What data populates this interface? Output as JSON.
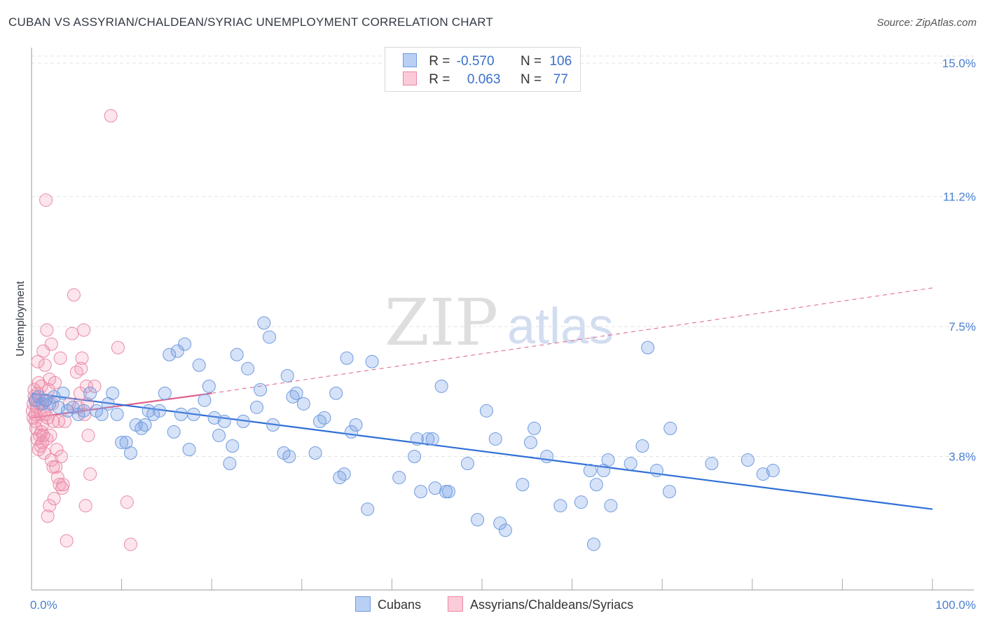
{
  "title": "CUBAN VS ASSYRIAN/CHALDEAN/SYRIAC UNEMPLOYMENT CORRELATION CHART",
  "source": "Source: ZipAtlas.com",
  "watermark": {
    "zip": "ZIP",
    "atlas": "atlas"
  },
  "legend": {
    "rows": [
      {
        "r_label": "R =",
        "r_value": "-0.570",
        "n_label": "N =",
        "n_value": "106",
        "color": "#a8c4f0",
        "border": "#6f9be0"
      },
      {
        "r_label": "R =",
        "r_value": "0.063",
        "n_label": "N =",
        "n_value": "77",
        "color": "#f8b8cb",
        "border": "#e98aa6"
      }
    ]
  },
  "bottom_legend": {
    "cubans": "Cubans",
    "assyrians": "Assyrians/Chaldeans/Syriacs"
  },
  "colors": {
    "blue_fill": "rgba(120,160,230,0.30)",
    "blue_stroke": "#6f9be0",
    "blue_line": "#2f6fd6",
    "pink_fill": "rgba(245,150,180,0.25)",
    "pink_stroke": "#e98aa6",
    "pink_line": "#e0608a",
    "tick_color": "#4a7fd0",
    "grid": "#e3e3e3"
  },
  "chart_data": {
    "type": "scatter",
    "title": "CUBAN VS ASSYRIAN/CHALDEAN/SYRIAC UNEMPLOYMENT CORRELATION CHART",
    "xlabel": "",
    "ylabel": "Unemployment",
    "xlim": [
      0,
      100
    ],
    "ylim": [
      0,
      15.5
    ],
    "x_tick_labels": [
      "0.0%",
      "100.0%"
    ],
    "y_ticks": [
      3.8,
      7.5,
      11.2,
      15.0
    ],
    "y_tick_labels": [
      "3.8%",
      "7.5%",
      "11.2%",
      "15.0%"
    ],
    "grid": true,
    "legend_position": "top-center",
    "series": [
      {
        "name": "Cubans",
        "R": -0.57,
        "N": 106,
        "trend": {
          "x": [
            0,
            100
          ],
          "y": [
            5.6,
            2.3
          ]
        },
        "points": [
          [
            0.4,
            5.4
          ],
          [
            0.8,
            5.5
          ],
          [
            1.2,
            5.3
          ],
          [
            1.6,
            5.4
          ],
          [
            2.0,
            5.3
          ],
          [
            2.5,
            5.5
          ],
          [
            3.0,
            5.2
          ],
          [
            3.5,
            5.6
          ],
          [
            4.0,
            5.1
          ],
          [
            4.6,
            5.2
          ],
          [
            5.2,
            5.0
          ],
          [
            5.8,
            5.1
          ],
          [
            6.5,
            5.6
          ],
          [
            7.2,
            5.1
          ],
          [
            7.8,
            5.0
          ],
          [
            8.5,
            5.3
          ],
          [
            9.0,
            5.6
          ],
          [
            9.5,
            5.0
          ],
          [
            10.0,
            4.2
          ],
          [
            10.5,
            4.2
          ],
          [
            11.0,
            3.9
          ],
          [
            11.6,
            4.7
          ],
          [
            12.2,
            4.6
          ],
          [
            12.6,
            4.7
          ],
          [
            13.0,
            5.1
          ],
          [
            13.5,
            5.0
          ],
          [
            14.2,
            5.1
          ],
          [
            14.8,
            5.6
          ],
          [
            15.3,
            6.7
          ],
          [
            15.8,
            4.5
          ],
          [
            16.2,
            6.8
          ],
          [
            16.6,
            5.0
          ],
          [
            17.0,
            7.0
          ],
          [
            17.5,
            4.0
          ],
          [
            18.0,
            5.0
          ],
          [
            18.6,
            6.4
          ],
          [
            19.2,
            5.4
          ],
          [
            19.7,
            5.8
          ],
          [
            20.3,
            4.9
          ],
          [
            20.8,
            4.4
          ],
          [
            21.4,
            4.8
          ],
          [
            22.0,
            3.6
          ],
          [
            22.3,
            4.1
          ],
          [
            22.8,
            6.7
          ],
          [
            23.5,
            4.8
          ],
          [
            24.0,
            6.3
          ],
          [
            25.0,
            5.2
          ],
          [
            25.4,
            5.7
          ],
          [
            25.8,
            7.6
          ],
          [
            26.4,
            7.2
          ],
          [
            26.8,
            4.7
          ],
          [
            28.0,
            3.9
          ],
          [
            28.4,
            6.1
          ],
          [
            28.6,
            3.8
          ],
          [
            29.0,
            5.5
          ],
          [
            29.4,
            5.6
          ],
          [
            30.2,
            5.3
          ],
          [
            31.5,
            3.9
          ],
          [
            32.0,
            4.8
          ],
          [
            32.5,
            4.9
          ],
          [
            33.8,
            5.6
          ],
          [
            34.2,
            3.2
          ],
          [
            34.7,
            3.3
          ],
          [
            35.0,
            6.6
          ],
          [
            35.5,
            4.5
          ],
          [
            36.0,
            4.7
          ],
          [
            37.3,
            2.3
          ],
          [
            37.8,
            6.5
          ],
          [
            40.8,
            3.2
          ],
          [
            42.5,
            3.8
          ],
          [
            42.8,
            4.3
          ],
          [
            43.2,
            2.8
          ],
          [
            44.0,
            4.3
          ],
          [
            44.5,
            4.3
          ],
          [
            44.8,
            2.9
          ],
          [
            45.5,
            5.8
          ],
          [
            46.0,
            2.8
          ],
          [
            46.3,
            2.8
          ],
          [
            48.4,
            3.6
          ],
          [
            49.5,
            2.0
          ],
          [
            50.5,
            5.1
          ],
          [
            51.5,
            4.3
          ],
          [
            52.0,
            1.9
          ],
          [
            52.6,
            1.7
          ],
          [
            54.5,
            3.0
          ],
          [
            55.4,
            4.2
          ],
          [
            55.8,
            4.6
          ],
          [
            57.2,
            3.8
          ],
          [
            58.7,
            2.4
          ],
          [
            61.0,
            2.5
          ],
          [
            62.0,
            3.4
          ],
          [
            62.4,
            1.3
          ],
          [
            62.7,
            3.0
          ],
          [
            63.5,
            3.4
          ],
          [
            64.0,
            3.7
          ],
          [
            64.3,
            2.4
          ],
          [
            66.5,
            3.6
          ],
          [
            67.8,
            4.1
          ],
          [
            68.4,
            6.9
          ],
          [
            69.4,
            3.4
          ],
          [
            70.8,
            2.8
          ],
          [
            70.9,
            4.6
          ],
          [
            75.5,
            3.6
          ],
          [
            79.5,
            3.7
          ],
          [
            81.2,
            3.3
          ],
          [
            82.3,
            3.4
          ]
        ]
      },
      {
        "name": "Assyrians/Chaldeans/Syriacs",
        "R": 0.063,
        "N": 77,
        "trend": {
          "x": [
            0,
            20,
            100
          ],
          "y": [
            4.9,
            5.6,
            8.6
          ]
        },
        "points": [
          [
            0.1,
            5.1
          ],
          [
            0.2,
            5.3
          ],
          [
            0.2,
            4.9
          ],
          [
            0.3,
            5.5
          ],
          [
            0.3,
            5.7
          ],
          [
            0.4,
            4.8
          ],
          [
            0.4,
            5.0
          ],
          [
            0.5,
            4.6
          ],
          [
            0.5,
            5.4
          ],
          [
            0.6,
            5.2
          ],
          [
            0.6,
            4.3
          ],
          [
            0.7,
            6.5
          ],
          [
            0.7,
            5.6
          ],
          [
            0.8,
            4.0
          ],
          [
            0.8,
            5.9
          ],
          [
            0.9,
            4.4
          ],
          [
            0.9,
            5.3
          ],
          [
            1.0,
            4.1
          ],
          [
            1.0,
            5.0
          ],
          [
            1.1,
            4.5
          ],
          [
            1.1,
            5.8
          ],
          [
            1.2,
            4.7
          ],
          [
            1.2,
            4.2
          ],
          [
            1.3,
            6.8
          ],
          [
            1.3,
            4.4
          ],
          [
            1.4,
            5.1
          ],
          [
            1.4,
            3.9
          ],
          [
            1.5,
            6.4
          ],
          [
            1.5,
            5.4
          ],
          [
            1.6,
            11.1
          ],
          [
            1.6,
            5.0
          ],
          [
            1.7,
            4.3
          ],
          [
            1.7,
            7.4
          ],
          [
            1.8,
            4.9
          ],
          [
            1.8,
            2.1
          ],
          [
            1.9,
            5.7
          ],
          [
            2.0,
            6.0
          ],
          [
            2.0,
            2.4
          ],
          [
            2.1,
            4.4
          ],
          [
            2.2,
            3.7
          ],
          [
            2.2,
            7.0
          ],
          [
            2.3,
            5.3
          ],
          [
            2.4,
            3.5
          ],
          [
            2.4,
            4.8
          ],
          [
            2.5,
            2.6
          ],
          [
            2.6,
            5.9
          ],
          [
            2.7,
            3.5
          ],
          [
            2.8,
            4.0
          ],
          [
            2.9,
            3.2
          ],
          [
            3.0,
            4.8
          ],
          [
            3.1,
            3.0
          ],
          [
            3.2,
            6.6
          ],
          [
            3.3,
            3.8
          ],
          [
            3.4,
            2.9
          ],
          [
            3.5,
            3.0
          ],
          [
            3.7,
            4.8
          ],
          [
            3.9,
            1.4
          ],
          [
            4.2,
            5.3
          ],
          [
            4.5,
            7.3
          ],
          [
            4.7,
            8.4
          ],
          [
            5.0,
            6.2
          ],
          [
            5.2,
            5.2
          ],
          [
            5.4,
            5.6
          ],
          [
            5.5,
            6.3
          ],
          [
            5.6,
            6.6
          ],
          [
            5.8,
            7.4
          ],
          [
            5.9,
            5.0
          ],
          [
            6.0,
            2.4
          ],
          [
            6.1,
            5.8
          ],
          [
            6.2,
            5.3
          ],
          [
            6.3,
            4.4
          ],
          [
            6.5,
            3.3
          ],
          [
            7.0,
            5.8
          ],
          [
            8.8,
            13.5
          ],
          [
            9.6,
            6.9
          ],
          [
            10.6,
            2.5
          ],
          [
            11.0,
            1.3
          ]
        ]
      }
    ]
  }
}
